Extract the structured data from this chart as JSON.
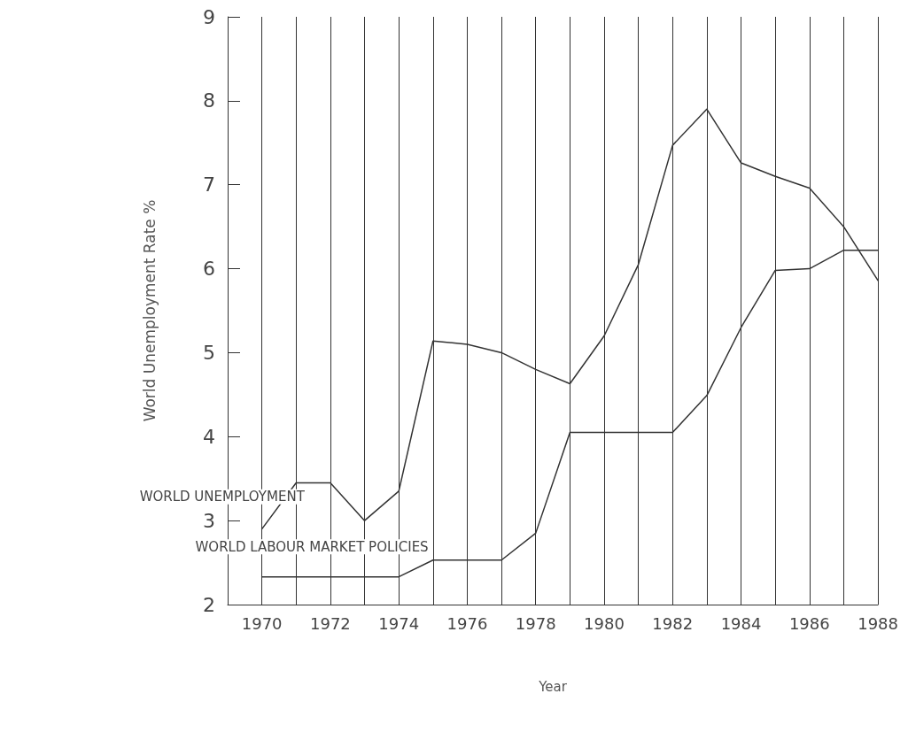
{
  "chart_data": {
    "type": "line",
    "xlabel": "Year",
    "ylabel": "World Unemployment Rate %",
    "x": [
      1970,
      1971,
      1972,
      1973,
      1974,
      1975,
      1976,
      1977,
      1978,
      1979,
      1980,
      1981,
      1982,
      1983,
      1984,
      1985,
      1986,
      1987,
      1988
    ],
    "series": [
      {
        "name": "WORLD UNEMPLOYMENT",
        "color": "#333333",
        "values": [
          2.9,
          3.45,
          3.45,
          3.0,
          3.35,
          5.14,
          5.1,
          5.0,
          4.8,
          4.63,
          5.2,
          6.05,
          7.47,
          7.9,
          7.26,
          7.1,
          6.96,
          6.5,
          5.86
        ]
      },
      {
        "name": "WORLD LABOUR MARKET POLICIES",
        "color": "#333333",
        "values": [
          2.33,
          2.33,
          2.33,
          2.33,
          2.33,
          2.53,
          2.53,
          2.53,
          2.85,
          4.05,
          4.05,
          4.05,
          4.05,
          4.49,
          5.3,
          5.98,
          6.0,
          6.22,
          6.22
        ]
      }
    ],
    "xlim": [
      1969,
      1988
    ],
    "xticks": [
      1970,
      {
        "value": 1971,
        "label": null
      },
      1972,
      {
        "value": 1973,
        "label": null
      },
      1974,
      {
        "value": 1975,
        "label": null
      },
      1976,
      {
        "value": 1977,
        "label": null
      },
      1978,
      {
        "value": 1979,
        "label": null
      },
      1980,
      {
        "value": 1981,
        "label": null
      },
      1982,
      {
        "value": 1983,
        "label": null
      },
      1984,
      {
        "value": 1985,
        "label": null
      },
      1986,
      {
        "value": 1987,
        "label": null
      },
      1988
    ],
    "ylim": [
      2,
      9
    ],
    "yticks": [
      2,
      3,
      4,
      5,
      6,
      7,
      8,
      9
    ],
    "grid": "x",
    "legend": false,
    "marker": "none",
    "line_style": "solid"
  }
}
